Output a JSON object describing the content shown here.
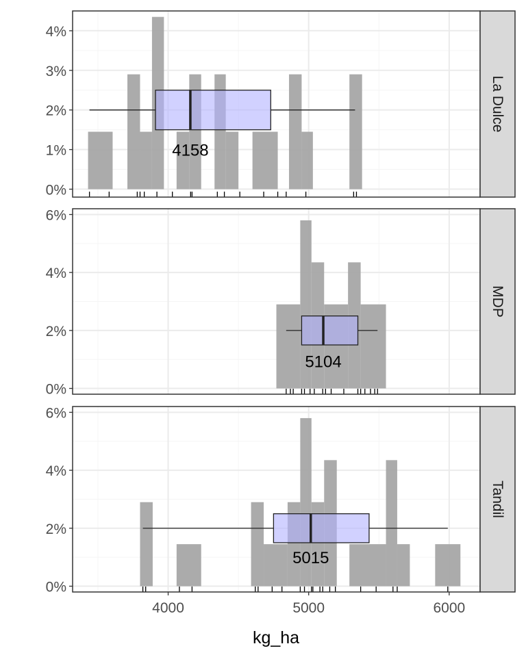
{
  "chart_data": {
    "type": "histogram-boxplot-facets",
    "xlabel": "kg_ha",
    "xlim": [
      3320,
      6220
    ],
    "x_ticks": [
      4000,
      5000,
      6000
    ],
    "x_tick_labels": [
      "4000",
      "5000",
      "6000"
    ],
    "bin_width": 175,
    "grid": true,
    "colors": {
      "bar": "#a6a6a6",
      "box_fill": "#b3b3ff",
      "box_stroke": "#222222",
      "strip_fill": "#d9d9d9",
      "panel_border": "#333333",
      "grid_major": "#ebebeb",
      "grid_minor": "#f5f5f5",
      "rug": "#000000"
    },
    "panels": [
      {
        "strip_label": "La Dulce",
        "ylim": [
          -0.2,
          4.5
        ],
        "y_ticks": [
          0,
          1,
          2,
          3,
          4
        ],
        "y_tick_labels": [
          "0%",
          "1%",
          "2%",
          "3%",
          "4%"
        ],
        "bins": [
          {
            "x0": 3430,
            "x1": 3605,
            "pct": 1.45
          },
          {
            "x0": 3710,
            "x1": 3800,
            "pct": 2.9
          },
          {
            "x0": 3800,
            "x1": 3885,
            "pct": 1.45
          },
          {
            "x0": 3885,
            "x1": 3970,
            "pct": 4.35
          },
          {
            "x0": 4060,
            "x1": 4150,
            "pct": 1.45
          },
          {
            "x0": 4150,
            "x1": 4235,
            "pct": 2.9
          },
          {
            "x0": 4330,
            "x1": 4410,
            "pct": 2.9
          },
          {
            "x0": 4410,
            "x1": 4500,
            "pct": 1.45
          },
          {
            "x0": 4600,
            "x1": 4780,
            "pct": 1.45
          },
          {
            "x0": 4860,
            "x1": 4950,
            "pct": 2.9
          },
          {
            "x0": 4950,
            "x1": 5030,
            "pct": 1.45
          },
          {
            "x0": 5290,
            "x1": 5380,
            "pct": 2.9
          }
        ],
        "box": {
          "min": 3440,
          "q1": 3910,
          "median": 4158,
          "q3": 4730,
          "max": 5330,
          "y": 2.0,
          "half_height": 0.5
        },
        "median_label": "4158",
        "median_label_y": 1.0,
        "rug": [
          3440,
          3580,
          3780,
          3800,
          3830,
          3920,
          4030,
          4160,
          4170,
          4350,
          4400,
          4510,
          4680,
          4780,
          4840,
          4980,
          5320,
          5340
        ]
      },
      {
        "strip_label": "MDP",
        "ylim": [
          -0.2,
          6.2
        ],
        "y_ticks": [
          0,
          2,
          4,
          6
        ],
        "y_tick_labels": [
          "0%",
          "2%",
          "4%",
          "6%"
        ],
        "bins": [
          {
            "x0": 4770,
            "x1": 4940,
            "pct": 2.9
          },
          {
            "x0": 4940,
            "x1": 5020,
            "pct": 5.8
          },
          {
            "x0": 5020,
            "x1": 5110,
            "pct": 4.35
          },
          {
            "x0": 5110,
            "x1": 5280,
            "pct": 2.9
          },
          {
            "x0": 5280,
            "x1": 5370,
            "pct": 4.35
          },
          {
            "x0": 5370,
            "x1": 5550,
            "pct": 2.9
          }
        ],
        "box": {
          "min": 4840,
          "q1": 4950,
          "median": 5104,
          "q3": 5350,
          "max": 5490,
          "y": 2.0,
          "half_height": 0.5
        },
        "median_label": "5104",
        "median_label_y": 0.95,
        "rug": [
          4840,
          4870,
          4890,
          4950,
          4970,
          5010,
          5040,
          5100,
          5120,
          5160,
          5250,
          5350,
          5370,
          5400,
          5440,
          5470,
          5490
        ]
      },
      {
        "strip_label": "Tandil",
        "ylim": [
          -0.2,
          6.2
        ],
        "y_ticks": [
          0,
          2,
          4,
          6
        ],
        "y_tick_labels": [
          "0%",
          "2%",
          "4%",
          "6%"
        ],
        "bins": [
          {
            "x0": 3800,
            "x1": 3890,
            "pct": 2.9
          },
          {
            "x0": 4060,
            "x1": 4235,
            "pct": 1.45
          },
          {
            "x0": 4590,
            "x1": 4680,
            "pct": 2.9
          },
          {
            "x0": 4680,
            "x1": 4850,
            "pct": 1.45
          },
          {
            "x0": 4850,
            "x1": 4940,
            "pct": 2.9
          },
          {
            "x0": 4940,
            "x1": 5020,
            "pct": 5.8
          },
          {
            "x0": 5020,
            "x1": 5110,
            "pct": 2.9
          },
          {
            "x0": 5110,
            "x1": 5200,
            "pct": 4.35
          },
          {
            "x0": 5290,
            "x1": 5550,
            "pct": 1.45
          },
          {
            "x0": 5550,
            "x1": 5630,
            "pct": 4.35
          },
          {
            "x0": 5630,
            "x1": 5720,
            "pct": 1.45
          },
          {
            "x0": 5900,
            "x1": 6080,
            "pct": 1.45
          }
        ],
        "box": {
          "min": 3820,
          "q1": 4750,
          "median": 5015,
          "q3": 5430,
          "max": 5990,
          "y": 2.0,
          "half_height": 0.5
        },
        "median_label": "5015",
        "median_label_y": 1.0,
        "rug": [
          3820,
          3840,
          4080,
          4170,
          4620,
          4640,
          4740,
          4810,
          4940,
          4970,
          5020,
          5030,
          5080,
          5100,
          5150,
          5190,
          5370,
          5480,
          5600,
          5630,
          5990
        ]
      }
    ]
  }
}
